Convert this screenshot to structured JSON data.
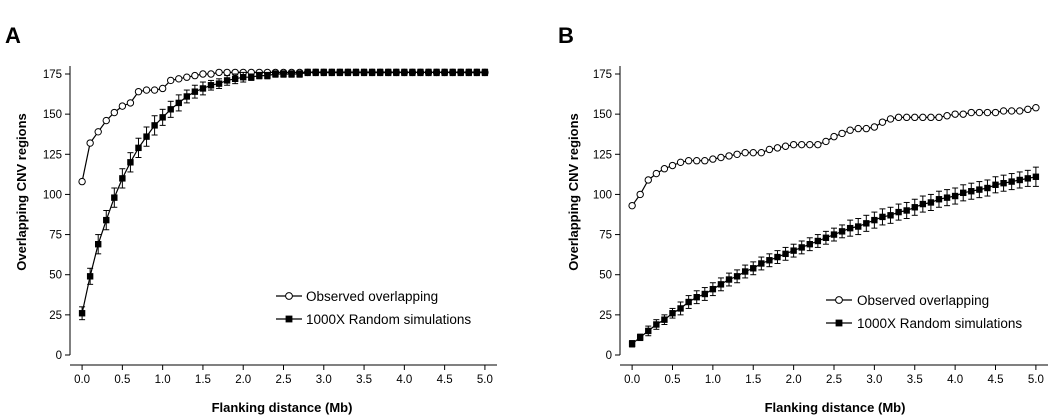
{
  "figure": {
    "panels": [
      "A",
      "B"
    ]
  },
  "chart_data": [
    {
      "panel": "A",
      "type": "line",
      "xlabel": "Flanking distance (Mb)",
      "ylabel": "Overlapping CNV regions",
      "xlim": [
        -0.15,
        5.15
      ],
      "ylim": [
        0,
        175
      ],
      "xticks": [
        0.0,
        0.5,
        1.0,
        1.5,
        2.0,
        2.5,
        3.0,
        3.5,
        4.0,
        4.5,
        5.0
      ],
      "yticks": [
        0,
        25,
        50,
        75,
        100,
        125,
        150,
        175
      ],
      "legend_position": "bottom-right",
      "series": [
        {
          "name": "Observed overlapping",
          "marker": "open-circle",
          "x": [
            0.0,
            0.1,
            0.2,
            0.3,
            0.4,
            0.5,
            0.6,
            0.7,
            0.8,
            0.9,
            1.0,
            1.1,
            1.2,
            1.3,
            1.4,
            1.5,
            1.6,
            1.7,
            1.8,
            1.9,
            2.0,
            2.1,
            2.2,
            2.3,
            2.4,
            2.5,
            2.6,
            2.7,
            2.8,
            2.9,
            3.0,
            3.1,
            3.2,
            3.3,
            3.4,
            3.5,
            3.6,
            3.7,
            3.8,
            3.9,
            4.0,
            4.1,
            4.2,
            4.3,
            4.4,
            4.5,
            4.6,
            4.7,
            4.8,
            4.9,
            5.0
          ],
          "y": [
            108,
            132,
            139,
            146,
            151,
            155,
            157,
            164,
            165,
            165,
            166,
            171,
            172,
            173,
            174,
            175,
            175,
            176,
            176,
            176,
            176,
            176,
            176,
            176,
            176,
            176,
            176,
            176,
            176,
            176,
            176,
            176,
            176,
            176,
            176,
            176,
            176,
            176,
            176,
            176,
            176,
            176,
            176,
            176,
            176,
            176,
            176,
            176,
            176,
            176,
            176
          ]
        },
        {
          "name": "1000X Random simulations",
          "marker": "filled-square",
          "x": [
            0.0,
            0.1,
            0.2,
            0.3,
            0.4,
            0.5,
            0.6,
            0.7,
            0.8,
            0.9,
            1.0,
            1.1,
            1.2,
            1.3,
            1.4,
            1.5,
            1.6,
            1.7,
            1.8,
            1.9,
            2.0,
            2.1,
            2.2,
            2.3,
            2.4,
            2.5,
            2.6,
            2.7,
            2.8,
            2.9,
            3.0,
            3.1,
            3.2,
            3.3,
            3.4,
            3.5,
            3.6,
            3.7,
            3.8,
            3.9,
            4.0,
            4.1,
            4.2,
            4.3,
            4.4,
            4.5,
            4.6,
            4.7,
            4.8,
            4.9,
            5.0
          ],
          "y": [
            26,
            49,
            69,
            84,
            98,
            110,
            120,
            129,
            136,
            143,
            148,
            153,
            157,
            161,
            164,
            166,
            168,
            169,
            171,
            172,
            173,
            173,
            174,
            174,
            175,
            175,
            175,
            175,
            176,
            176,
            176,
            176,
            176,
            176,
            176,
            176,
            176,
            176,
            176,
            176,
            176,
            176,
            176,
            176,
            176,
            176,
            176,
            176,
            176,
            176,
            176
          ],
          "err": [
            4,
            5,
            6,
            6,
            6,
            6,
            6,
            6,
            6,
            6,
            5,
            5,
            5,
            4,
            4,
            4,
            3,
            3,
            3,
            3,
            3,
            2,
            2,
            2,
            2,
            2,
            2,
            2,
            2,
            2,
            2,
            2,
            2,
            2,
            2,
            2,
            2,
            2,
            2,
            2,
            2,
            2,
            2,
            2,
            2,
            2,
            2,
            2,
            2,
            2,
            2
          ]
        }
      ]
    },
    {
      "panel": "B",
      "type": "line",
      "xlabel": "Flanking distance (Mb)",
      "ylabel": "Overlapping CNV regions",
      "xlim": [
        -0.15,
        5.15
      ],
      "ylim": [
        0,
        175
      ],
      "xticks": [
        0.0,
        0.5,
        1.0,
        1.5,
        2.0,
        2.5,
        3.0,
        3.5,
        4.0,
        4.5,
        5.0
      ],
      "yticks": [
        0,
        25,
        50,
        75,
        100,
        125,
        150,
        175
      ],
      "legend_position": "bottom-right",
      "series": [
        {
          "name": "Observed overlapping",
          "marker": "open-circle",
          "x": [
            0.0,
            0.1,
            0.2,
            0.3,
            0.4,
            0.5,
            0.6,
            0.7,
            0.8,
            0.9,
            1.0,
            1.1,
            1.2,
            1.3,
            1.4,
            1.5,
            1.6,
            1.7,
            1.8,
            1.9,
            2.0,
            2.1,
            2.2,
            2.3,
            2.4,
            2.5,
            2.6,
            2.7,
            2.8,
            2.9,
            3.0,
            3.1,
            3.2,
            3.3,
            3.4,
            3.5,
            3.6,
            3.7,
            3.8,
            3.9,
            4.0,
            4.1,
            4.2,
            4.3,
            4.4,
            4.5,
            4.6,
            4.7,
            4.8,
            4.9,
            5.0
          ],
          "y": [
            93,
            100,
            109,
            113,
            116,
            118,
            120,
            121,
            121,
            121,
            122,
            123,
            124,
            125,
            126,
            126,
            126,
            128,
            129,
            130,
            131,
            131,
            131,
            131,
            133,
            136,
            138,
            140,
            141,
            141,
            142,
            145,
            147,
            148,
            148,
            148,
            148,
            148,
            148,
            149,
            150,
            150,
            151,
            151,
            151,
            151,
            152,
            152,
            152,
            153,
            154
          ]
        },
        {
          "name": "1000X Random simulations",
          "marker": "filled-square",
          "x": [
            0.0,
            0.1,
            0.2,
            0.3,
            0.4,
            0.5,
            0.6,
            0.7,
            0.8,
            0.9,
            1.0,
            1.1,
            1.2,
            1.3,
            1.4,
            1.5,
            1.6,
            1.7,
            1.8,
            1.9,
            2.0,
            2.1,
            2.2,
            2.3,
            2.4,
            2.5,
            2.6,
            2.7,
            2.8,
            2.9,
            3.0,
            3.1,
            3.2,
            3.3,
            3.4,
            3.5,
            3.6,
            3.7,
            3.8,
            3.9,
            4.0,
            4.1,
            4.2,
            4.3,
            4.4,
            4.5,
            4.6,
            4.7,
            4.8,
            4.9,
            5.0
          ],
          "y": [
            7,
            11,
            15,
            19,
            22,
            26,
            29,
            33,
            36,
            38,
            41,
            44,
            47,
            49,
            52,
            54,
            57,
            59,
            61,
            63,
            65,
            67,
            69,
            71,
            73,
            75,
            77,
            79,
            80,
            82,
            84,
            86,
            87,
            89,
            90,
            92,
            94,
            95,
            97,
            98,
            99,
            101,
            102,
            103,
            104,
            106,
            107,
            108,
            109,
            110,
            111
          ],
          "err": [
            2,
            2,
            3,
            3,
            3,
            3,
            4,
            4,
            4,
            4,
            4,
            4,
            4,
            4,
            4,
            4,
            4,
            4,
            4,
            4,
            4,
            4,
            4,
            4,
            4,
            4,
            4,
            5,
            5,
            5,
            5,
            5,
            5,
            5,
            5,
            5,
            5,
            5,
            5,
            5,
            5,
            5,
            5,
            5,
            5,
            5,
            5,
            5,
            5,
            5,
            6
          ]
        }
      ]
    }
  ]
}
